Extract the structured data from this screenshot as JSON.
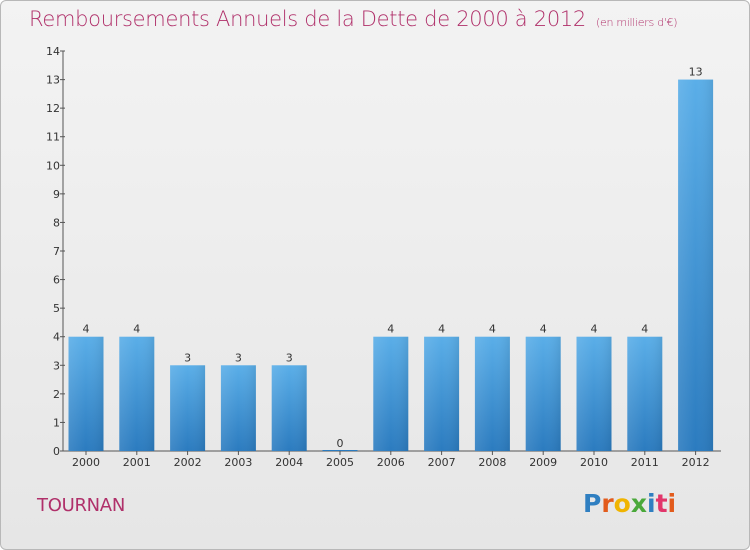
{
  "header": {
    "title": "Remboursements Annuels de la Dette de 2000 à 2012",
    "unit": "(en milliers d'€)"
  },
  "footer": {
    "commune": "TOURNAN",
    "logo_letters": [
      {
        "ch": "P",
        "color": "#2f7fc1"
      },
      {
        "ch": "r",
        "color": "#e25b1c"
      },
      {
        "ch": "o",
        "color": "#f0b400"
      },
      {
        "ch": "x",
        "color": "#4aa83a"
      },
      {
        "ch": "i",
        "color": "#2f7fc1"
      },
      {
        "ch": "t",
        "color": "#e2366b"
      },
      {
        "ch": "i",
        "color": "#e25b1c"
      }
    ]
  },
  "colors": {
    "bar_top": "#5aaee8",
    "bar_bottom": "#2b7bbf",
    "title": "#b0306a"
  },
  "chart_data": {
    "type": "bar",
    "categories": [
      "2000",
      "2001",
      "2002",
      "2003",
      "2004",
      "2005",
      "2006",
      "2007",
      "2008",
      "2009",
      "2010",
      "2011",
      "2012"
    ],
    "values": [
      4,
      4,
      3,
      3,
      3,
      0,
      4,
      4,
      4,
      4,
      4,
      4,
      13
    ],
    "ylim": [
      0,
      14
    ],
    "yticks": [
      0,
      1,
      2,
      3,
      4,
      5,
      6,
      7,
      8,
      9,
      10,
      11,
      12,
      13,
      14
    ],
    "xlabel": "",
    "ylabel": "",
    "grid": false,
    "legend": "none"
  }
}
